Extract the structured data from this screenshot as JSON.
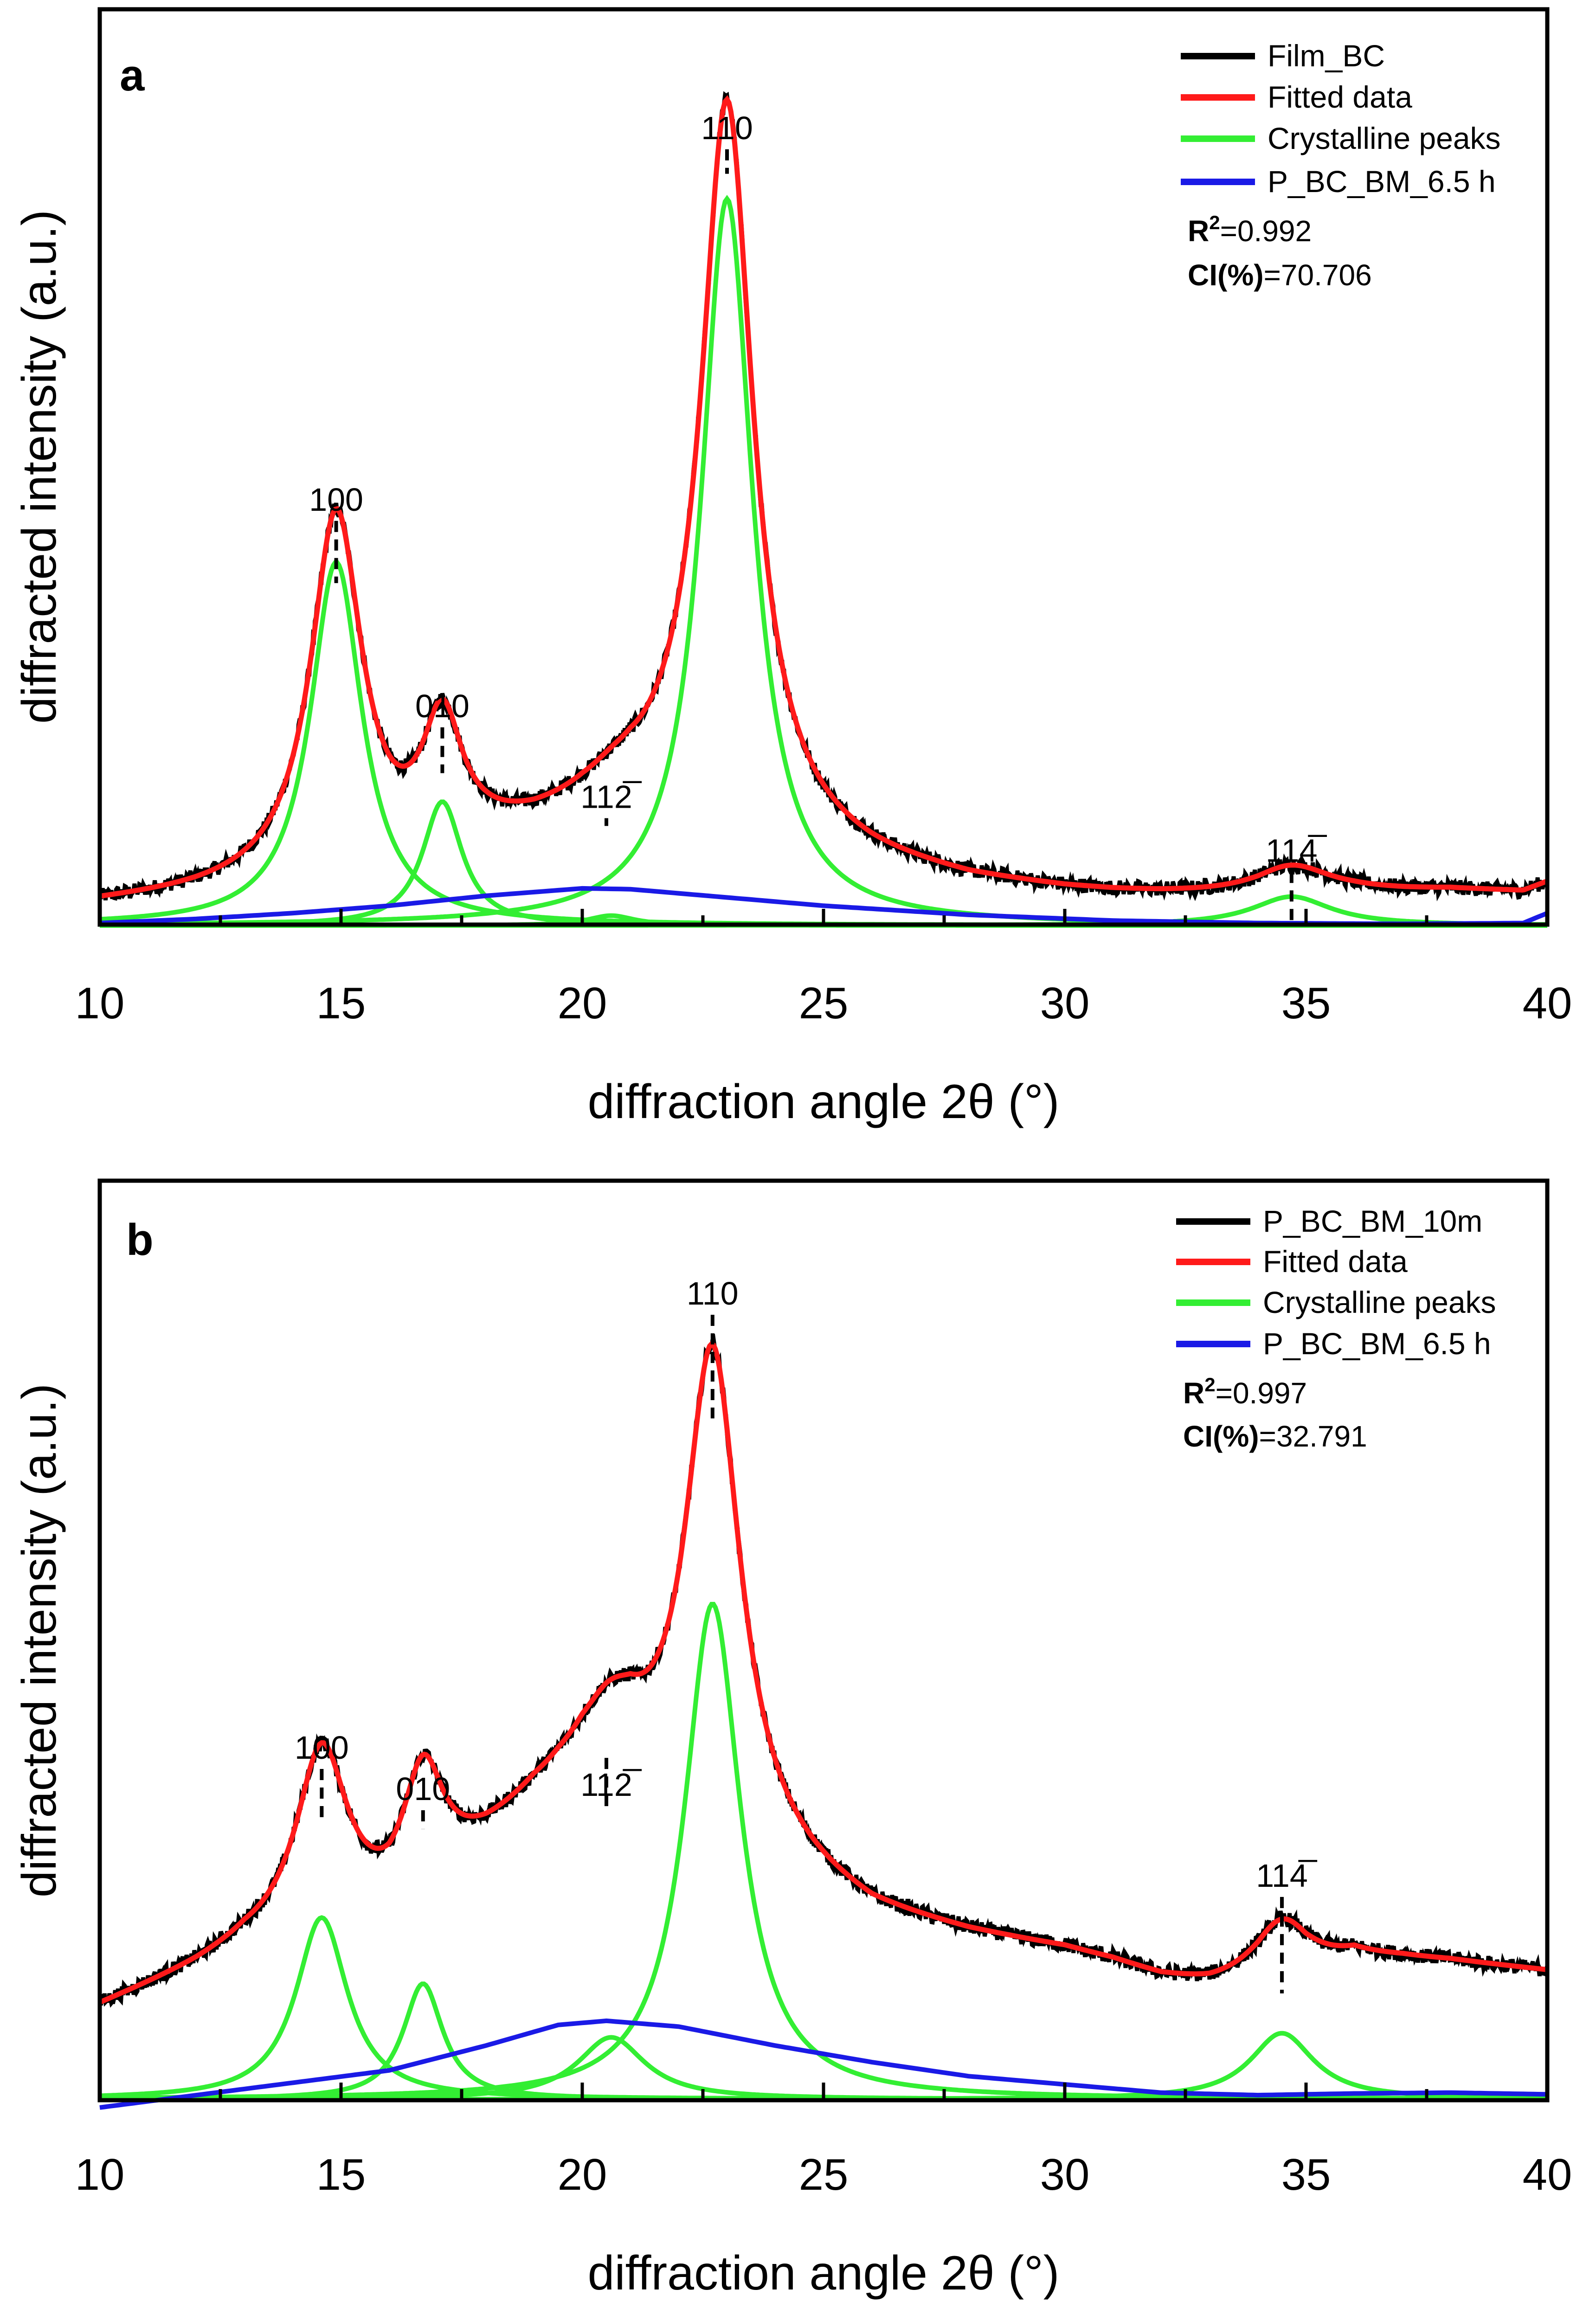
{
  "colors": {
    "raw": "#000000",
    "fit": "#ff1a1a",
    "crystalline": "#33ee33",
    "amorphous": "#1a1ae6",
    "axis": "#000000"
  },
  "chart_data": [
    {
      "type": "line",
      "panel": "a",
      "xlabel": "diffraction angle 2θ (°)",
      "ylabel": "diffracted intensity (a.u.)",
      "xlim": [
        10,
        40
      ],
      "ylim": [
        0,
        100
      ],
      "x_ticks": [
        "10",
        "15",
        "20",
        "25",
        "30",
        "35",
        "40"
      ],
      "legend": [
        "Film_BC",
        "Fitted data",
        "Crystalline peaks",
        "P_BC_BM_6.5 h"
      ],
      "stats": {
        "r2_label": "R",
        "r2_sup": "2",
        "r2_value": "=0.992",
        "ci_label": "CI(%)",
        "ci_value": "=70.706"
      },
      "peak_labels": [
        {
          "label": "100",
          "x": 14.9,
          "y": 49
        },
        {
          "label": "010",
          "x": 17.1,
          "y": 24
        },
        {
          "label": "112̅",
          "x": 20.5,
          "y": 13
        },
        {
          "label": "110",
          "x": 23.0,
          "y": 94
        },
        {
          "label": "114̅",
          "x": 34.7,
          "y": 6.5
        }
      ],
      "crystalline_peaks": [
        {
          "center": 14.9,
          "height": 44,
          "fwhm": 1.3
        },
        {
          "center": 17.1,
          "height": 15,
          "fwhm": 1.0
        },
        {
          "center": 20.6,
          "height": 1.2,
          "fwhm": 1.2
        },
        {
          "center": 23.0,
          "height": 88,
          "fwhm": 1.3
        },
        {
          "center": 34.7,
          "height": 3.5,
          "fwhm": 2.0
        }
      ],
      "amorphous": {
        "points": [
          [
            10,
            0.3
          ],
          [
            12,
            0.8
          ],
          [
            14,
            1.5
          ],
          [
            16,
            2.4
          ],
          [
            18,
            3.6
          ],
          [
            20,
            4.5
          ],
          [
            21,
            4.4
          ],
          [
            23,
            3.4
          ],
          [
            25,
            2.4
          ],
          [
            28,
            1.3
          ],
          [
            31,
            0.6
          ],
          [
            34,
            0.3
          ],
          [
            37,
            0.2
          ],
          [
            39.5,
            0.3
          ],
          [
            40,
            1.5
          ]
        ]
      },
      "fit_offset": {
        "points": [
          [
            10,
            2.2
          ],
          [
            13,
            2.8
          ],
          [
            16,
            3.5
          ],
          [
            18,
            5.8
          ],
          [
            19,
            6.8
          ],
          [
            20,
            8.3
          ],
          [
            21,
            9.6
          ],
          [
            22,
            9.3
          ],
          [
            24,
            7.0
          ],
          [
            26,
            5.0
          ],
          [
            28,
            3.8
          ],
          [
            30,
            3.2
          ],
          [
            32,
            3.0
          ],
          [
            34,
            3.0
          ],
          [
            36,
            3.6
          ],
          [
            38,
            3.9
          ],
          [
            40,
            3.6
          ]
        ]
      },
      "noise_amp": 0.9
    },
    {
      "type": "line",
      "panel": "b",
      "xlabel": "diffraction angle 2θ (°)",
      "ylabel": "diffracted intensity (a.u.)",
      "xlim": [
        10,
        40
      ],
      "ylim": [
        0,
        100
      ],
      "x_ticks": [
        "10",
        "15",
        "20",
        "25",
        "30",
        "35",
        "40"
      ],
      "legend": [
        "P_BC_BM_10m",
        "Fitted data",
        "Crystalline peaks",
        "P_BC_BM_6.5 h"
      ],
      "stats": {
        "r2_label": "R",
        "r2_sup": "2",
        "r2_value": "=0.997",
        "ci_label": "CI(%)",
        "ci_value": "=32.791"
      },
      "peak_labels": [
        {
          "label": "100",
          "x": 14.6,
          "y": 40
        },
        {
          "label": "010",
          "x": 16.7,
          "y": 35
        },
        {
          "label": "112̅",
          "x": 20.5,
          "y": 35.5
        },
        {
          "label": "110",
          "x": 22.7,
          "y": 95
        },
        {
          "label": "114̅",
          "x": 34.5,
          "y": 24.5
        }
      ],
      "crystalline_peaks": [
        {
          "center": 14.6,
          "height": 22,
          "fwhm": 1.3
        },
        {
          "center": 16.7,
          "height": 14,
          "fwhm": 1.0
        },
        {
          "center": 20.6,
          "height": 7.5,
          "fwhm": 1.7
        },
        {
          "center": 22.7,
          "height": 60,
          "fwhm": 1.4
        },
        {
          "center": 34.5,
          "height": 8,
          "fwhm": 1.6
        }
      ],
      "amorphous": {
        "points": [
          [
            10,
            -1
          ],
          [
            12,
            0.5
          ],
          [
            14,
            2
          ],
          [
            16,
            3.5
          ],
          [
            18,
            6.5
          ],
          [
            19.5,
            9
          ],
          [
            20.5,
            9.5
          ],
          [
            22,
            8.8
          ],
          [
            24,
            6.5
          ],
          [
            26,
            4.5
          ],
          [
            28,
            2.8
          ],
          [
            30,
            1.8
          ],
          [
            32,
            0.8
          ],
          [
            34,
            0.5
          ],
          [
            36,
            0.7
          ],
          [
            38,
            0.8
          ],
          [
            40,
            0.6
          ]
        ]
      },
      "fit_offset": {
        "points": [
          [
            10,
            12
          ],
          [
            12,
            15
          ],
          [
            13,
            16.8
          ],
          [
            15,
            17.5
          ],
          [
            16,
            18
          ],
          [
            17,
            21
          ],
          [
            18,
            23.5
          ],
          [
            19,
            26.5
          ],
          [
            20,
            28
          ],
          [
            21,
            27
          ],
          [
            22,
            23
          ],
          [
            24,
            20.5
          ],
          [
            25,
            19
          ],
          [
            26,
            17.5
          ],
          [
            28,
            16.8
          ],
          [
            30,
            16
          ],
          [
            31,
            15
          ],
          [
            32,
            13.5
          ],
          [
            33,
            12.5
          ],
          [
            34,
            12.5
          ],
          [
            35,
            13.5
          ],
          [
            36,
            16
          ],
          [
            37,
            16
          ],
          [
            38,
            15.7
          ],
          [
            40,
            14.8
          ]
        ]
      },
      "noise_amp": 0.9
    }
  ]
}
